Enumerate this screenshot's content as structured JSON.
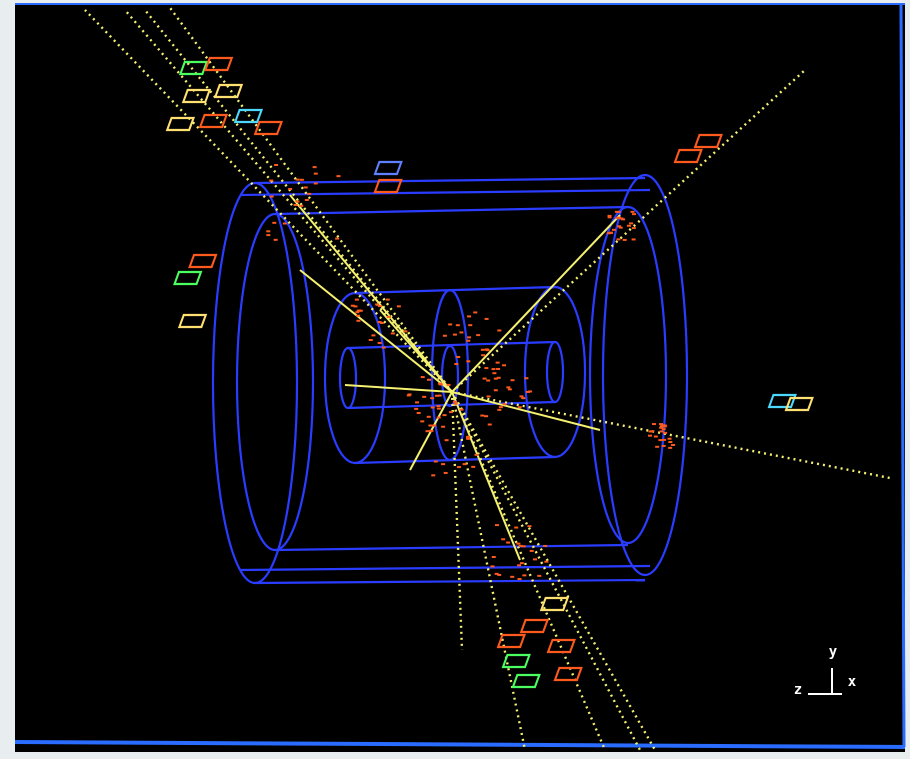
{
  "axes": {
    "y": "y",
    "z": "z",
    "x": "x"
  }
}
